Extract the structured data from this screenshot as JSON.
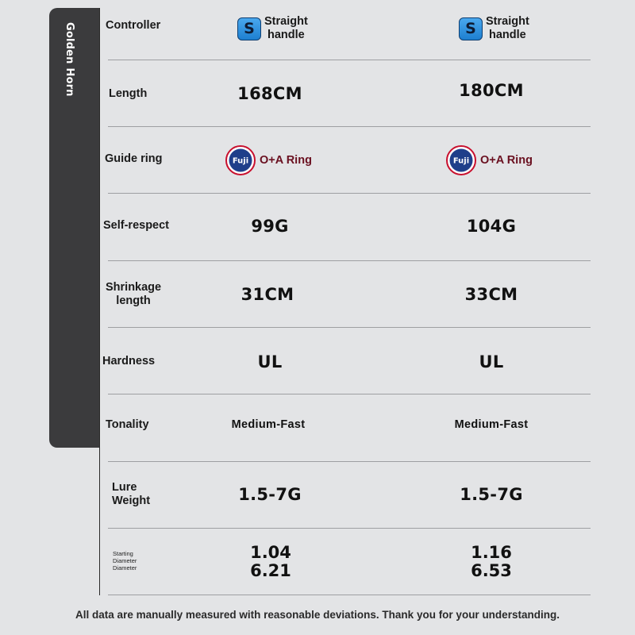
{
  "side_tab": {
    "label": "Golden Horn"
  },
  "controller": {
    "label": "Controller",
    "icon_letter": "S",
    "col1": [
      "Straight",
      "handle"
    ],
    "col2": [
      "Straight",
      "handle"
    ]
  },
  "length": {
    "label": "Length",
    "col1": "168CM",
    "col2": "180CM"
  },
  "guide_ring": {
    "label": "Guide ring",
    "logo_top": "FEATURING",
    "logo_word": "Fuji",
    "logo_bottom": "GUIDES",
    "col1": "O+A Ring",
    "col2": "O+A Ring"
  },
  "self_respect": {
    "label": "Self-respect",
    "col1": "99G",
    "col2": "104G"
  },
  "shrinkage": {
    "label": [
      "Shrinkage",
      "length"
    ],
    "col1": "31CM",
    "col2": "33CM"
  },
  "hardness": {
    "label": "Hardness",
    "col1": "UL",
    "col2": "UL"
  },
  "tonality": {
    "label": "Tonality",
    "col1": "Medium-Fast",
    "col2": "Medium-Fast"
  },
  "lure_weight": {
    "label": [
      "Lure",
      "Weight"
    ],
    "col1": "1.5-7G",
    "col2": "1.5-7G"
  },
  "diameter": {
    "label": [
      "Starting",
      "Diameter",
      "Diameter"
    ],
    "col1": [
      "1.04",
      "6.21"
    ],
    "col2": [
      "1.16",
      "6.53"
    ]
  },
  "footer": {
    "note": "All data are manually measured with reasonable deviations. Thank you for your understanding."
  },
  "colors": {
    "background": "#e3e4e6",
    "side_tab": "#3b3b3d",
    "icon_blue": "#2a8ee0",
    "guide_text": "#6a1020"
  }
}
